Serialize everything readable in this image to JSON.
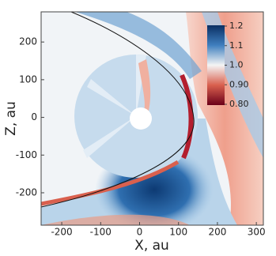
{
  "chart_data": {
    "type": "heatmap",
    "xlabel": "X, au",
    "ylabel": "Z, au",
    "xlim": [
      -253,
      318
    ],
    "ylim": [
      -286,
      280
    ],
    "xticks": [
      -200,
      -100,
      0,
      100,
      200,
      300
    ],
    "yticks": [
      -200,
      -100,
      0,
      100,
      200
    ],
    "clim": [
      0.8,
      1.2
    ],
    "cticks": [
      1.2,
      1.1,
      {
        "value": 1,
        "label": "1.0"
      },
      {
        "value": 0.9,
        "label": "0.90"
      },
      {
        "value": 0.8,
        "label": "0.80"
      }
    ]
  }
}
